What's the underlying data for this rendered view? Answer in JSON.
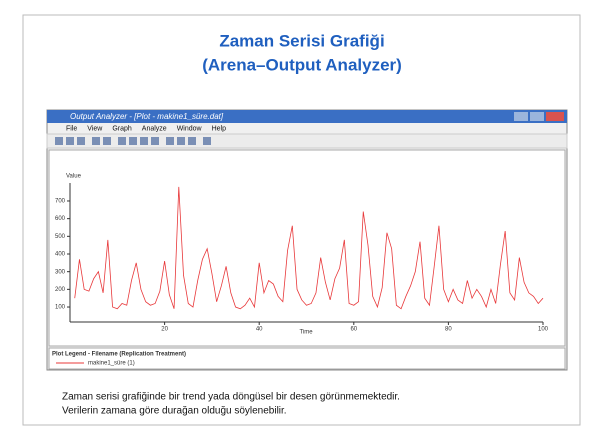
{
  "slide": {
    "title_line1": "Zaman Serisi Grafiği",
    "title_line2": "(Arena–Output Analyzer)",
    "body_lines": [
      "Zaman serisi grafiğinde bir trend yada döngüsel bir desen görünmemektedir.",
      "Verilerin zamana göre durağan olduğu söylenebilir."
    ]
  },
  "window": {
    "title": "Output Analyzer - [Plot - makine1_süre.dat]",
    "menu": [
      "File",
      "View",
      "Graph",
      "Analyze",
      "Window",
      "Help"
    ],
    "legend_title": "Plot Legend - Filename (Replication Treatment)"
  },
  "chart_data": {
    "type": "line",
    "y_label": "Value",
    "x_label": "Time",
    "x": [
      1,
      2,
      3,
      4,
      5,
      6,
      7,
      8,
      9,
      10,
      11,
      12,
      13,
      14,
      15,
      16,
      17,
      18,
      19,
      20,
      21,
      22,
      23,
      24,
      25,
      26,
      27,
      28,
      29,
      30,
      31,
      32,
      33,
      34,
      35,
      36,
      37,
      38,
      39,
      40,
      41,
      42,
      43,
      44,
      45,
      46,
      47,
      48,
      49,
      50,
      51,
      52,
      53,
      54,
      55,
      56,
      57,
      58,
      59,
      60,
      61,
      62,
      63,
      64,
      65,
      66,
      67,
      68,
      69,
      70,
      71,
      72,
      73,
      74,
      75,
      76,
      77,
      78,
      79,
      80,
      81,
      82,
      83,
      84,
      85,
      86,
      87,
      88,
      89,
      90,
      91,
      92,
      93,
      94,
      95,
      96,
      97,
      98,
      99,
      100
    ],
    "series": [
      {
        "name": "makine1_süre (1)",
        "color": "#e8383a",
        "values": [
          150,
          370,
          200,
          190,
          260,
          300,
          180,
          480,
          100,
          90,
          120,
          110,
          250,
          350,
          200,
          130,
          110,
          120,
          190,
          360,
          170,
          90,
          780,
          280,
          120,
          100,
          250,
          370,
          430,
          290,
          130,
          220,
          330,
          180,
          100,
          90,
          110,
          150,
          100,
          350,
          180,
          250,
          230,
          160,
          130,
          420,
          560,
          200,
          140,
          110,
          120,
          180,
          380,
          240,
          140,
          260,
          320,
          480,
          120,
          110,
          130,
          640,
          450,
          160,
          100,
          210,
          520,
          430,
          110,
          90,
          160,
          220,
          300,
          470,
          150,
          110,
          330,
          560,
          200,
          130,
          200,
          140,
          120,
          250,
          150,
          200,
          160,
          100,
          200,
          120,
          340,
          530,
          180,
          140,
          380,
          240,
          180,
          160,
          120,
          150
        ]
      }
    ],
    "xlim": [
      0,
      100
    ],
    "xticks": [
      20,
      40,
      60,
      80,
      100
    ],
    "ylim": [
      0,
      800
    ],
    "yticks": [
      100,
      200,
      300,
      400,
      500,
      600,
      700
    ]
  }
}
